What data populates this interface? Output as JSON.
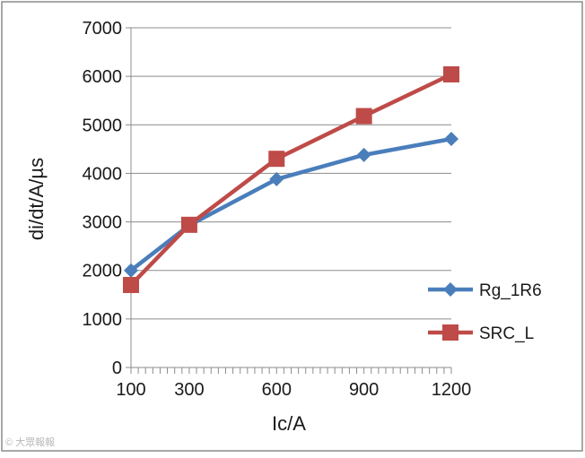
{
  "chart_data": {
    "type": "line",
    "title": "",
    "xlabel": "Ic/A",
    "ylabel": "di/dt/A/µs",
    "x": [
      100,
      300,
      600,
      900,
      1200
    ],
    "x_tick_labels": [
      "100",
      "300",
      "600",
      "900",
      "1200"
    ],
    "ylim": [
      0,
      7000
    ],
    "y_ticks": [
      0,
      1000,
      2000,
      3000,
      4000,
      5000,
      6000,
      7000
    ],
    "y_tick_labels": [
      "0",
      "1000",
      "2000",
      "3000",
      "4000",
      "5000",
      "6000",
      "7000"
    ],
    "grid": "horizontal",
    "legend_position": "right",
    "series": [
      {
        "name": "Rg_1R6",
        "color": "#4a7ebb",
        "marker": "diamond",
        "values": [
          2000,
          2930,
          3880,
          4380,
          4710
        ]
      },
      {
        "name": "SRC_L",
        "color": "#be4b48",
        "marker": "square",
        "values": [
          1700,
          2940,
          4300,
          5180,
          6040
        ]
      }
    ]
  },
  "watermark": {
    "text": "© 大眾報報"
  }
}
